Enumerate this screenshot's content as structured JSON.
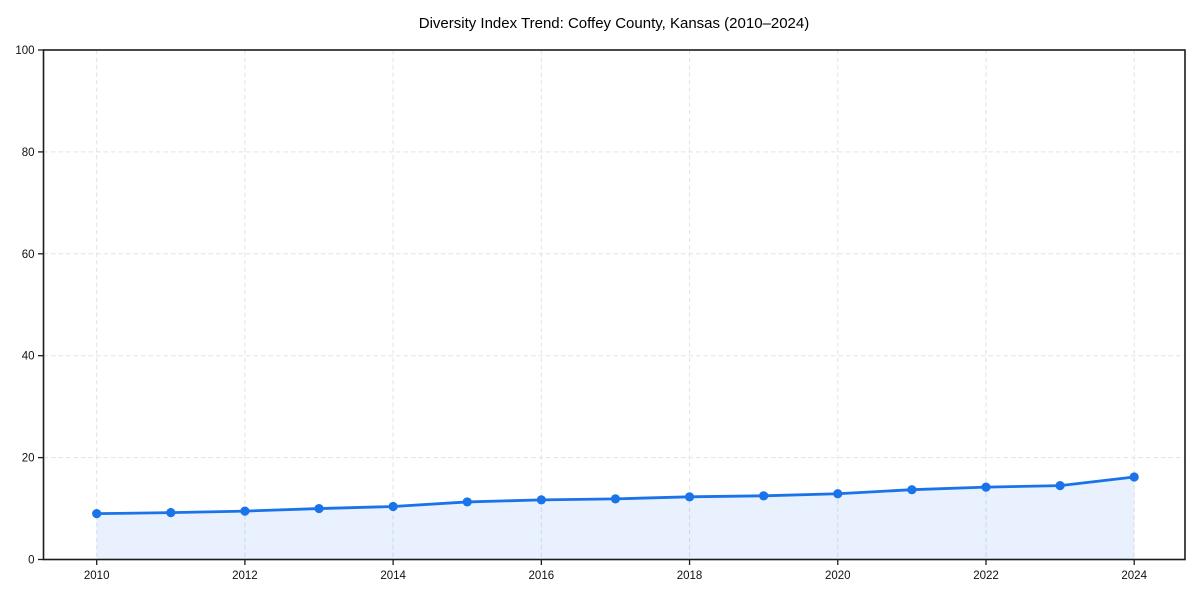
{
  "chart_data": {
    "type": "line",
    "title": "Diversity Index Trend: Coffey County, Kansas (2010–2024)",
    "series_name": "Diversity Index",
    "x": [
      2010,
      2011,
      2012,
      2013,
      2014,
      2015,
      2016,
      2017,
      2018,
      2019,
      2020,
      2021,
      2022,
      2023,
      2024
    ],
    "values": [
      9.0,
      9.2,
      9.5,
      10.0,
      10.4,
      11.3,
      11.7,
      11.9,
      12.3,
      12.5,
      12.9,
      13.7,
      14.2,
      14.5,
      16.2
    ],
    "xlabel": "",
    "ylabel": "",
    "xlim": [
      2009.3,
      2024.7
    ],
    "ylim": [
      0,
      100
    ],
    "xticks": [
      2010,
      2012,
      2014,
      2016,
      2018,
      2020,
      2022,
      2024
    ],
    "yticks": [
      0,
      20,
      40,
      60,
      80,
      100
    ],
    "grid": true,
    "grid_style": "dashed",
    "legend_position": "none",
    "marker": "circle",
    "area_fill_under_line": true,
    "colors": {
      "line": "#1a73e8",
      "marker": "#1a73e8",
      "area_fill": "rgba(26,115,232,0.10)",
      "gridline": "#e3e3e3",
      "axis": "#1c1c1c",
      "tick_label": "#111111",
      "title": "#000000",
      "background": "#ffffff"
    }
  }
}
